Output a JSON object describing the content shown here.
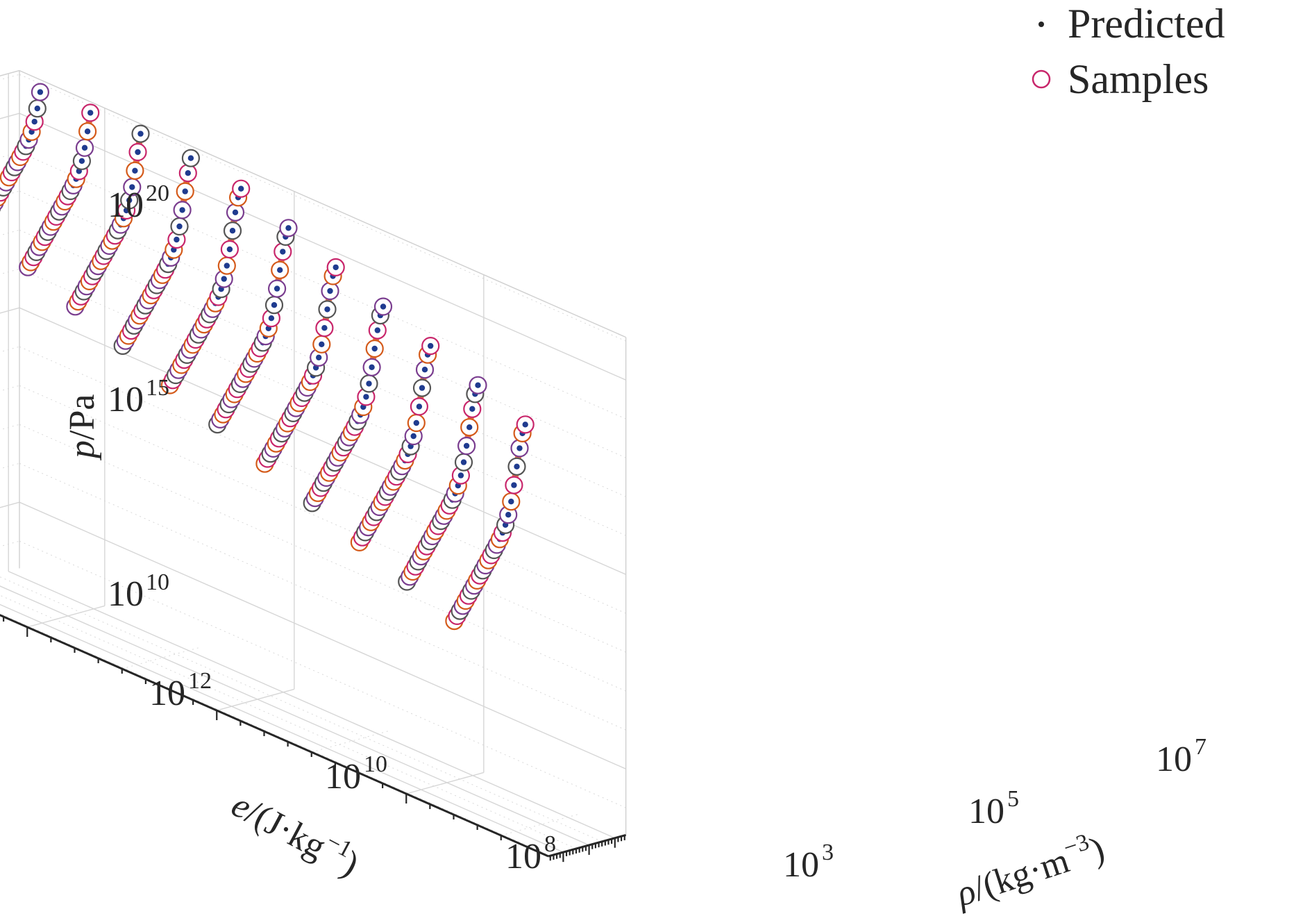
{
  "chart_data": {
    "type": "scatter3d",
    "axes": {
      "x": {
        "label_symbol": "ρ",
        "label_rest": "/(kg·m",
        "label_exp": "−3",
        "label_close": ")",
        "scale": "log",
        "ticks": [
          {
            "base": "10",
            "exp": "3"
          },
          {
            "base": "10",
            "exp": "5"
          },
          {
            "base": "10",
            "exp": "7"
          }
        ]
      },
      "y": {
        "label_symbol": "e",
        "label_rest": "/(J·kg",
        "label_exp": "−1",
        "label_close": ")",
        "scale": "log",
        "ticks": [
          {
            "base": "10",
            "exp": "8"
          },
          {
            "base": "10",
            "exp": "10"
          },
          {
            "base": "10",
            "exp": "12"
          }
        ]
      },
      "z": {
        "label_symbol": "p",
        "label_rest": "/Pa",
        "scale": "log",
        "ticks": [
          {
            "base": "10",
            "exp": "10"
          },
          {
            "base": "10",
            "exp": "15"
          },
          {
            "base": "10",
            "exp": "20"
          }
        ]
      }
    },
    "grid": true,
    "legend": {
      "placement": "top-right",
      "entries": [
        {
          "name": "Predicted",
          "marker": "dot",
          "color": "#1f3b8f"
        },
        {
          "name": "Samples",
          "marker": "circle",
          "color": "#c8266b"
        }
      ]
    },
    "ring_colors": [
      "#d45a1a",
      "#c8266b",
      "#555555",
      "#7a3d8f"
    ],
    "curve_color": "#e0582a",
    "series_log_energy": [
      7.5,
      8.0,
      8.5,
      9.0,
      9.5,
      10.0,
      10.5,
      11.0,
      11.5,
      12.0,
      12.5
    ],
    "series_count": 11
  }
}
